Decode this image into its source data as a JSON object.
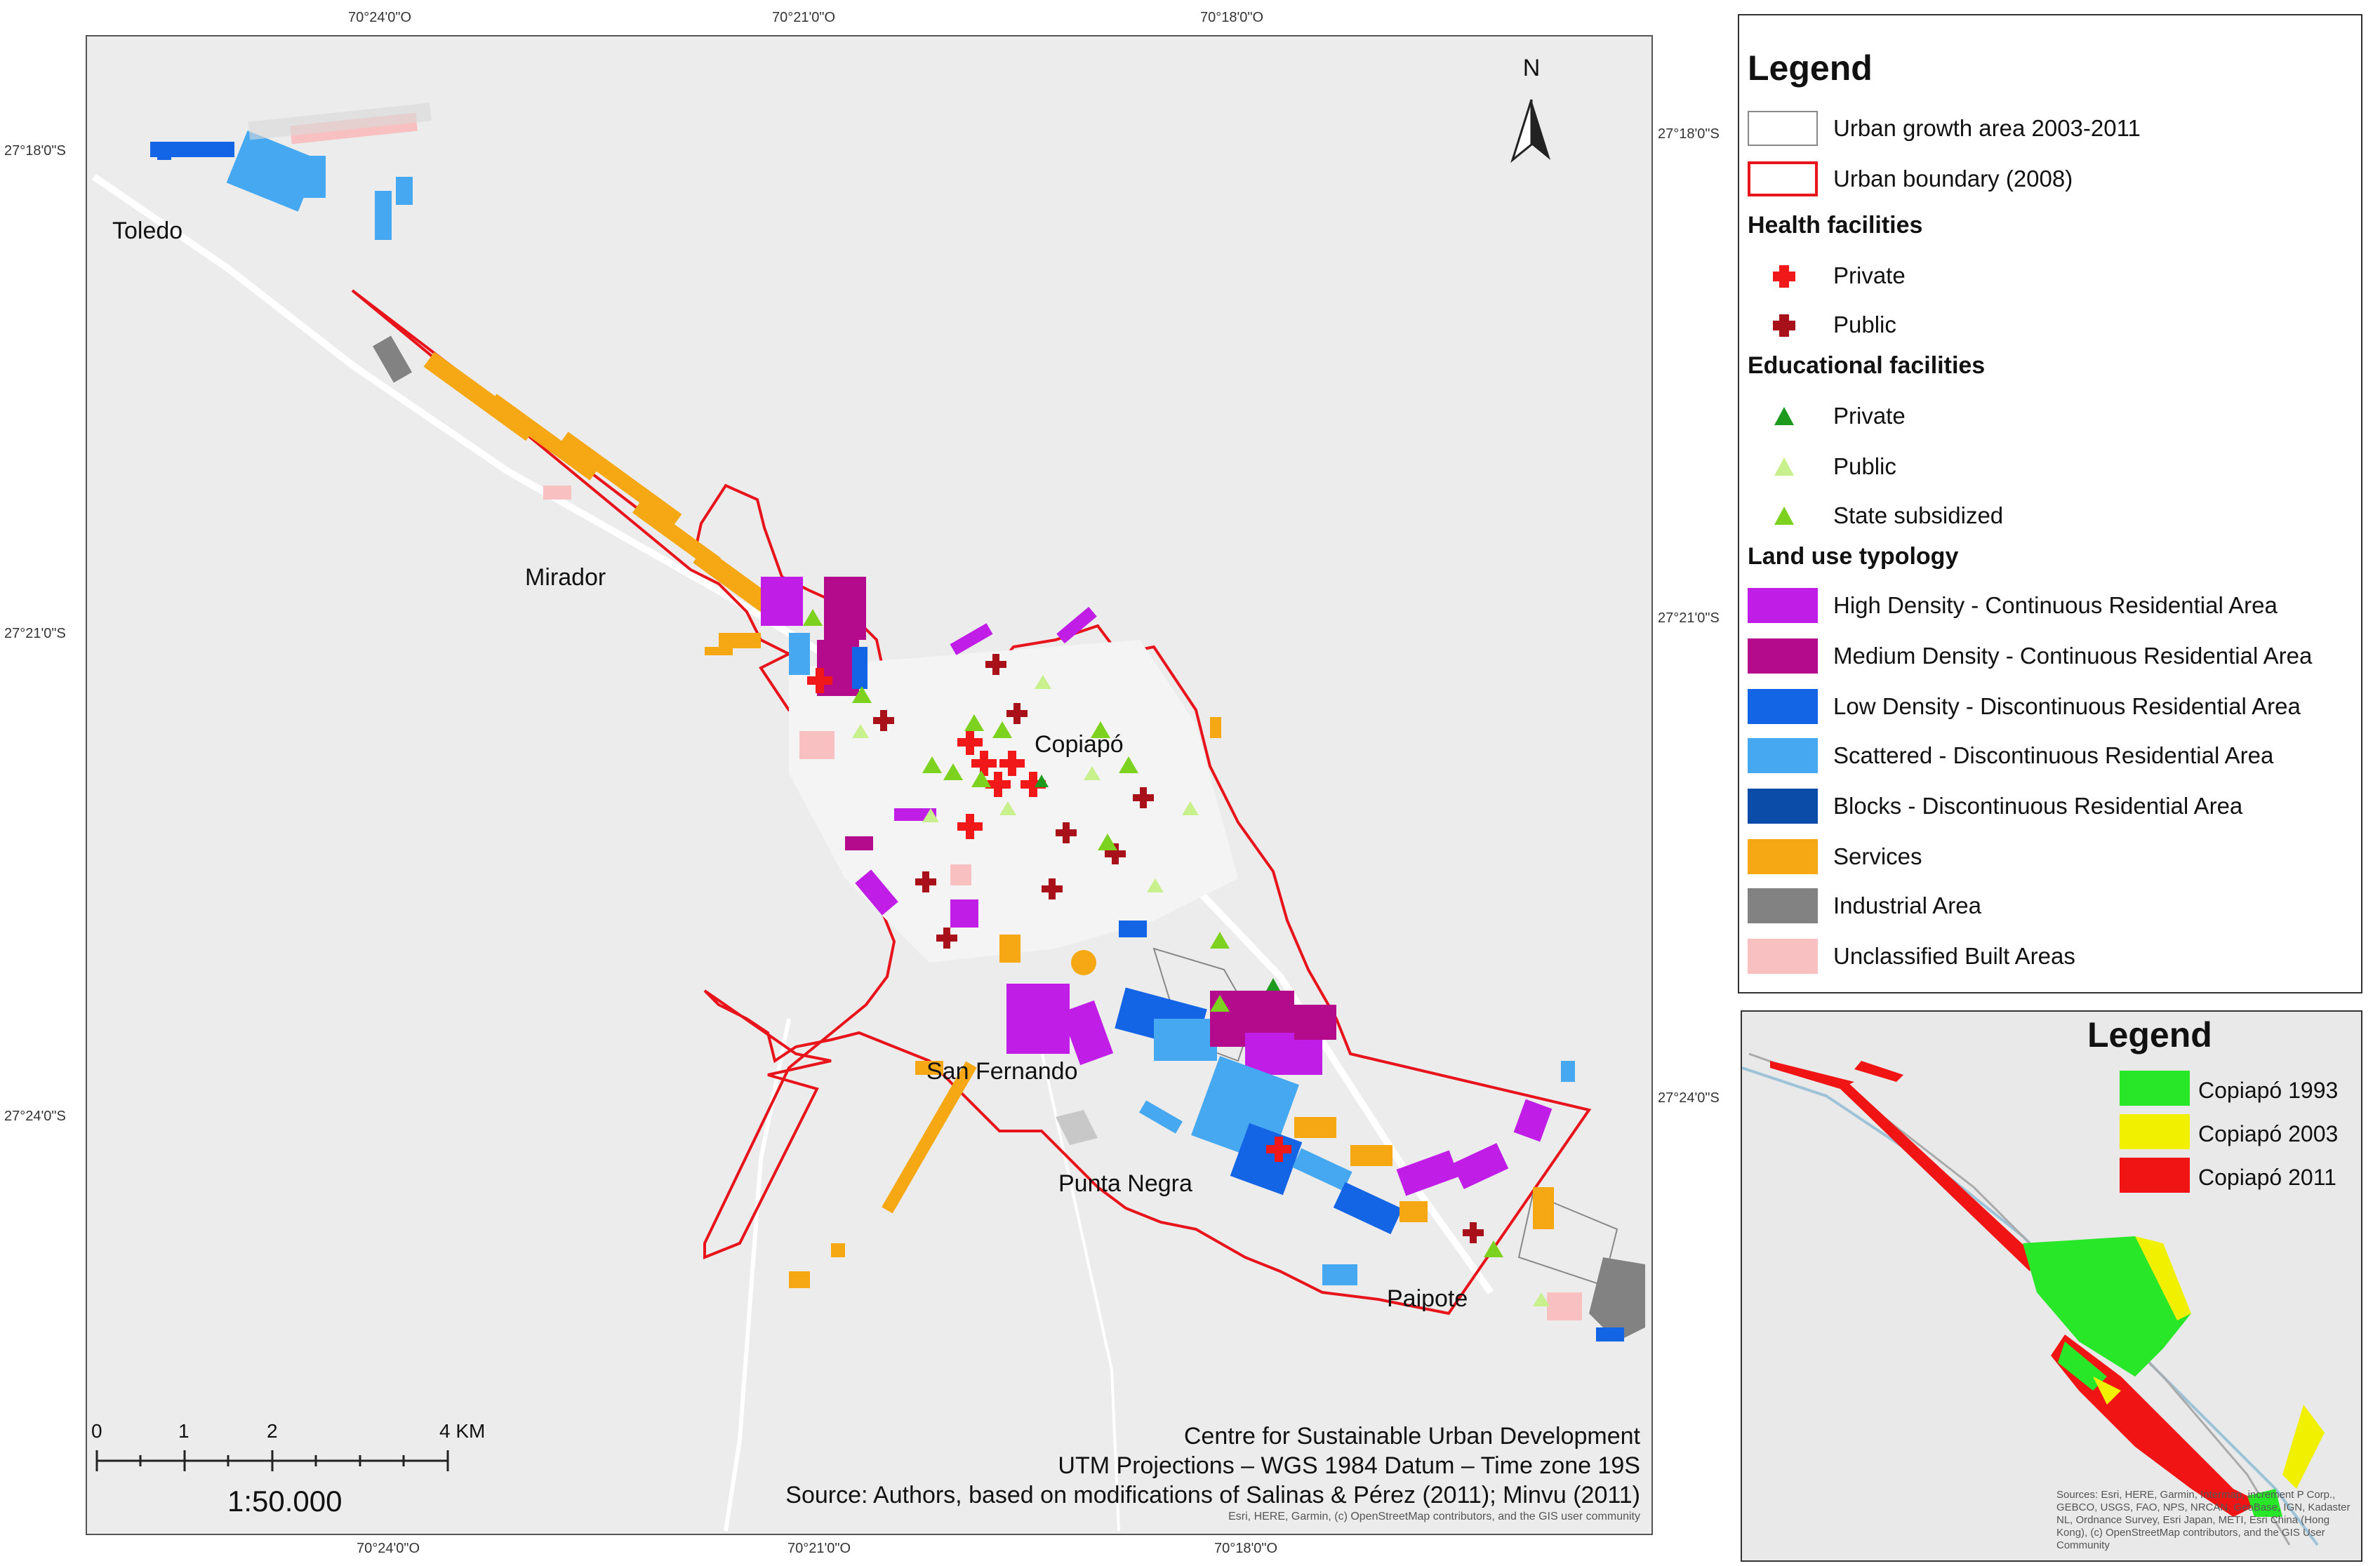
{
  "map": {
    "coords_top": [
      "70°24'0\"O",
      "70°21'0\"O",
      "70°18'0\"O"
    ],
    "coords_bottom": [
      "70°24'0\"O",
      "70°21'0\"O",
      "70°18'0\"O"
    ],
    "coords_left": [
      "27°18'0\"S",
      "27°21'0\"S",
      "27°24'0\"S"
    ],
    "coords_right": [
      "27°18'0\"S",
      "27°21'0\"S",
      "27°24'0\"S"
    ],
    "places": {
      "toledo": "Toledo",
      "mirador": "Mirador",
      "copiapo": "Copiapó",
      "san_fernando": "San Fernando",
      "punta_negra": "Punta Negra",
      "paipote": "Paipote"
    },
    "north": "N",
    "scale": {
      "ticks": [
        "0",
        "1",
        "2",
        "4 KM"
      ],
      "ratio": "1:50.000"
    },
    "credits": [
      "Centre for Sustainable Urban Development",
      "UTM Projections – WGS 1984 Datum – Time zone 19S",
      "Source: Authors, based on modifications of Salinas & Pérez (2011); Minvu (2011)"
    ],
    "basemap_credit": "Esri, HERE, Garmin, (c) OpenStreetMap contributors, and the GIS user community"
  },
  "legend": {
    "title": "Legend",
    "boundaries": [
      {
        "label": "Urban growth area 2003-2011",
        "stroke": "#888888"
      },
      {
        "label": "Urban boundary (2008)",
        "stroke": "#e8141c"
      }
    ],
    "health_title": "Health facilities",
    "health": [
      {
        "label": "Private",
        "color": "#f01818",
        "icon": "cross-icon"
      },
      {
        "label": "Public",
        "color": "#a8101a",
        "icon": "cross-icon"
      }
    ],
    "edu_title": "Educational facilities",
    "edu": [
      {
        "label": "Private",
        "color": "#1e9a1e",
        "icon": "triangle-icon"
      },
      {
        "label": "Public",
        "color": "#c8f08c",
        "icon": "triangle-icon"
      },
      {
        "label": "State subsidized",
        "color": "#7cd21e",
        "icon": "triangle-icon"
      }
    ],
    "landuse_title": "Land use typology",
    "landuse": [
      {
        "label": "High Density - Continuous Residential Area",
        "color": "#c01ee6"
      },
      {
        "label": "Medium Density - Continuous Residential Area",
        "color": "#b40a8c"
      },
      {
        "label": "Low Density - Discontinuous Residential Area",
        "color": "#1464e6"
      },
      {
        "label": "Scattered - Discontinuous Residential Area",
        "color": "#46a8f0"
      },
      {
        "label": "Blocks - Discontinuous Residential Area",
        "color": "#0a4ca8"
      },
      {
        "label": "Services",
        "color": "#f5a814"
      },
      {
        "label": "Industrial Area",
        "color": "#828282"
      },
      {
        "label": "Unclassified Built Areas",
        "color": "#f8c0c0"
      }
    ]
  },
  "inset": {
    "title": "Legend",
    "items": [
      {
        "label": "Copiapó 1993",
        "color": "#28e628"
      },
      {
        "label": "Copiapó 2003",
        "color": "#f0f000"
      },
      {
        "label": "Copiapó 2011",
        "color": "#f01414"
      }
    ],
    "credit": "Sources: Esri, HERE, Garmin, Intermap, increment P Corp., GEBCO, USGS, FAO, NPS, NRCAN, GeoBase, IGN, Kadaster NL, Ordnance Survey, Esri Japan, METI, Esri China (Hong Kong), (c) OpenStreetMap contributors, and the GIS User Community"
  }
}
